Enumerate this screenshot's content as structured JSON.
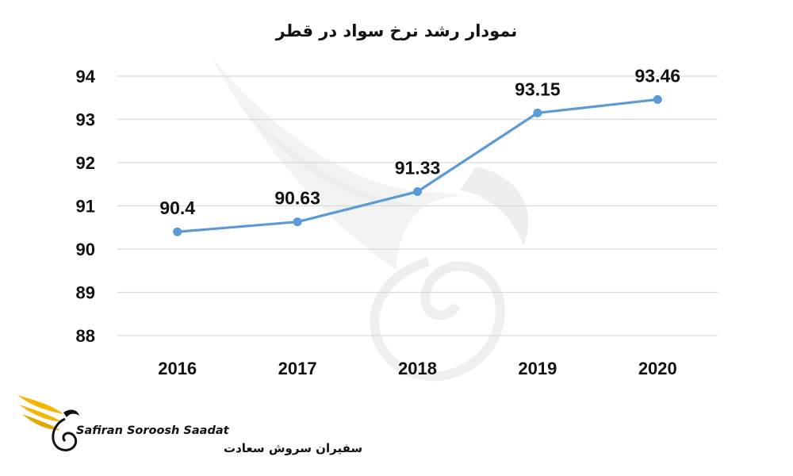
{
  "chart_data": {
    "type": "line",
    "title": "نمودار رشد نرخ سواد در قطر",
    "categories": [
      "2016",
      "2017",
      "2018",
      "2019",
      "2020"
    ],
    "series": [
      {
        "values": [
          90.4,
          90.63,
          91.33,
          93.15,
          93.46
        ],
        "color": "#5b9bd5"
      }
    ],
    "data_labels": [
      "90.4",
      "90.63",
      "91.33",
      "93.15",
      "93.46"
    ],
    "y_ticks": [
      "88",
      "89",
      "90",
      "91",
      "92",
      "93",
      "94"
    ],
    "ylim": [
      88,
      94
    ],
    "grid": true,
    "legend": "none"
  },
  "logo": {
    "text_en": "Safiran Soroosh Saadat",
    "text_fa": "سفیران سروش سعادت",
    "colors": {
      "wing": "#f2b705",
      "text": "#111111"
    }
  },
  "watermark": {
    "icon": "swan-wing-watermark-icon"
  }
}
